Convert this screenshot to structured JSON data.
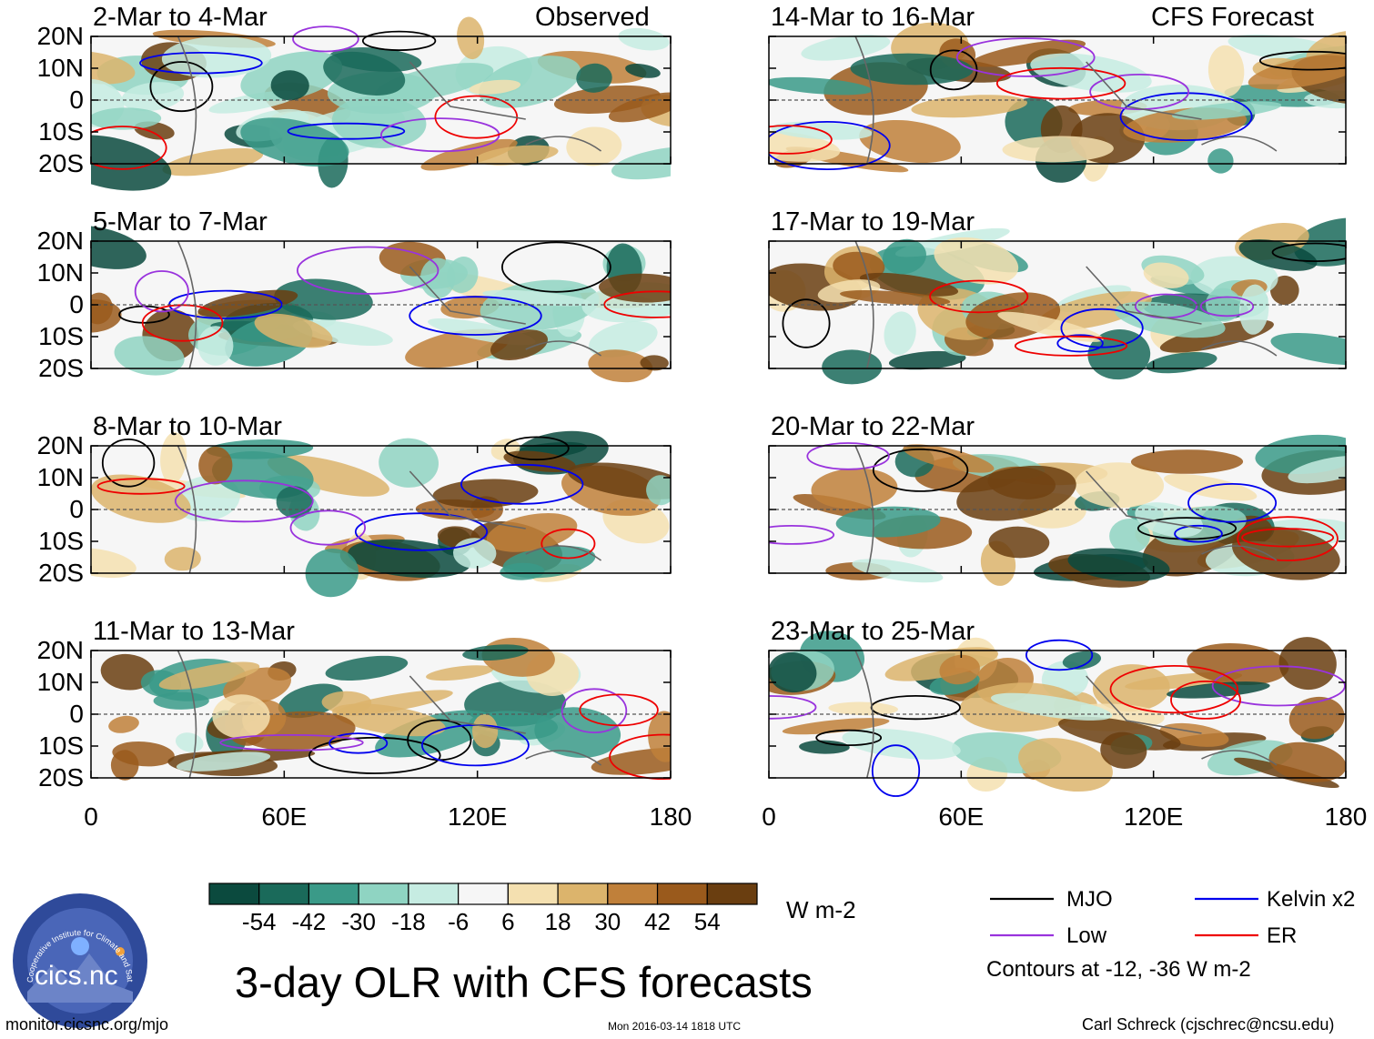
{
  "title": "3-day OLR with CFS forecasts",
  "observed_label": "Observed",
  "forecast_label": "CFS Forecast",
  "chart_data": {
    "type": "heatmap",
    "variable": "OLR anomaly",
    "units": "W m-2",
    "x_range_deg": [
      0,
      180
    ],
    "y_range_deg": [
      -20,
      20
    ],
    "x_ticks": [
      "0",
      "60E",
      "120E",
      "180"
    ],
    "y_ticks": [
      "20N",
      "10N",
      "0",
      "10S",
      "20S"
    ],
    "colorbar_ticks": [
      "-54",
      "-42",
      "-30",
      "-18",
      "-6",
      "6",
      "18",
      "30",
      "42",
      "54"
    ],
    "colorbar_colors": [
      "#0b4a3e",
      "#1a6a5a",
      "#3a9a88",
      "#8fd4c2",
      "#c6ece2",
      "#f6f6f6",
      "#f4e0b0",
      "#dcb46c",
      "#c0803a",
      "#9a5a1c",
      "#6a3e10"
    ],
    "contour_levels_text": "Contours at -12, -36 W m-2",
    "legend": [
      {
        "name": "MJO",
        "color": "#000000"
      },
      {
        "name": "Kelvin x2",
        "color": "#0000ee"
      },
      {
        "name": "Low",
        "color": "#9933dd"
      },
      {
        "name": "ER",
        "color": "#ee0000"
      }
    ],
    "panels": [
      {
        "label": "2-Mar to 4-Mar",
        "source": "Observed"
      },
      {
        "label": "5-Mar to 7-Mar",
        "source": "Observed"
      },
      {
        "label": "8-Mar to 10-Mar",
        "source": "Observed"
      },
      {
        "label": "11-Mar to 13-Mar",
        "source": "Observed"
      },
      {
        "label": "14-Mar to 16-Mar",
        "source": "CFS Forecast"
      },
      {
        "label": "17-Mar to 19-Mar",
        "source": "CFS Forecast"
      },
      {
        "label": "20-Mar to 22-Mar",
        "source": "CFS Forecast"
      },
      {
        "label": "23-Mar to 25-Mar",
        "source": "CFS Forecast"
      }
    ]
  },
  "logo": {
    "text": "cics.nc",
    "ring_text": "Cooperative Institute for Climate and Satellites"
  },
  "footer": {
    "url": "monitor.cicsnc.org/mjo",
    "timestamp": "Mon 2016-03-14 1818 UTC",
    "author": "Carl Schreck (cjschrec@ncsu.edu)"
  }
}
